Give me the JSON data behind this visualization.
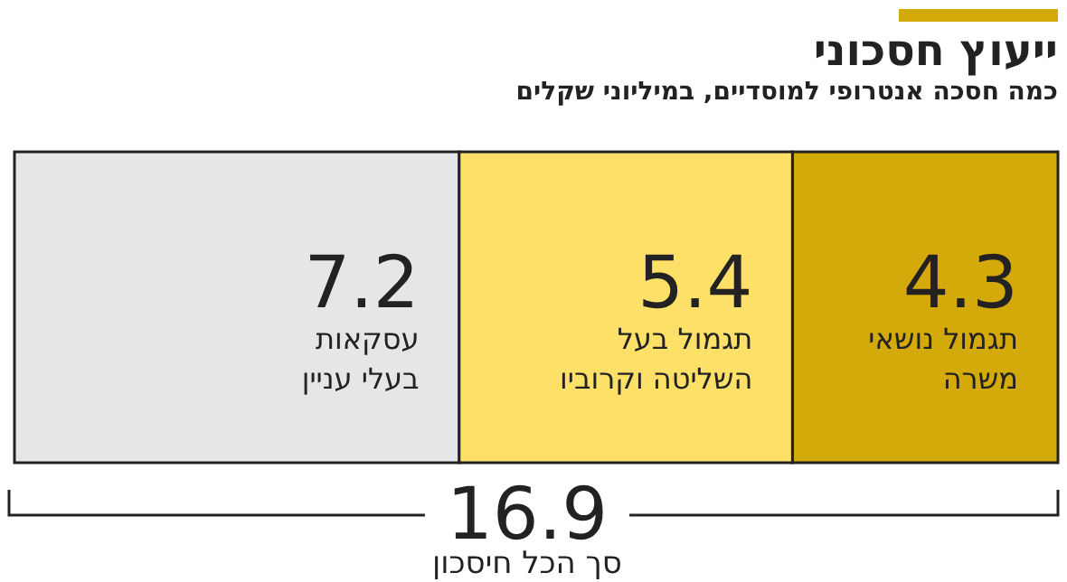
{
  "chart_data": {
    "type": "bar",
    "orientation": "horizontal",
    "stacked": true,
    "title": "ייעוץ חסכוני",
    "subtitle": "כמה חסכה אנטרופי למוסדיים, במיליוני שקלים",
    "categories": [
      null
    ],
    "series": [
      {
        "name": "תגמול נושאי משרה",
        "color": "#d4a90a",
        "values": [
          4.3
        ]
      },
      {
        "name": "תגמול בעל השליטה וקרוביו",
        "color": "#fde068",
        "values": [
          5.4
        ]
      },
      {
        "name": "עסקאות בעלי עניין",
        "color": "#e6e6e8",
        "values": [
          7.2
        ]
      }
    ],
    "data_labels": true,
    "totals": [
      "16.9"
    ],
    "annotations": [
      "סך הכל חיסכון"
    ]
  }
}
